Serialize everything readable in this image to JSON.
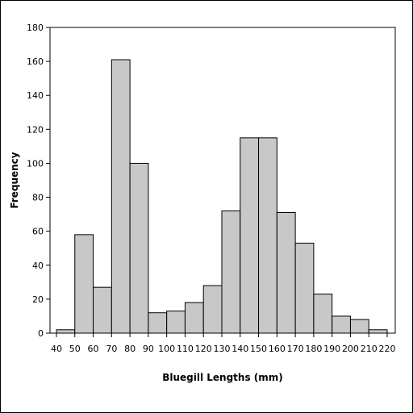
{
  "chart_data": {
    "type": "bar",
    "title": "",
    "xlabel": "Bluegill Lengths (mm)",
    "ylabel": "Frequency",
    "bin_edges": [
      40,
      50,
      60,
      70,
      80,
      90,
      100,
      110,
      120,
      130,
      140,
      150,
      160,
      170,
      180,
      190,
      200,
      210,
      220
    ],
    "values": [
      2,
      58,
      27,
      161,
      100,
      12,
      13,
      18,
      28,
      72,
      115,
      115,
      71,
      53,
      23,
      10,
      8,
      2
    ],
    "xlim": [
      40,
      220
    ],
    "ylim": [
      0,
      180
    ],
    "x_ticks": [
      "40",
      "50",
      "60",
      "70",
      "80",
      "90",
      "100",
      "110",
      "120",
      "130",
      "140",
      "150",
      "160",
      "170",
      "180",
      "190",
      "200",
      "210",
      "220"
    ],
    "y_ticks": [
      "0",
      "20",
      "40",
      "60",
      "80",
      "100",
      "120",
      "140",
      "160",
      "180"
    ],
    "bar_fill": "#c8c8c8",
    "bar_stroke": "#000000",
    "grid": false
  }
}
